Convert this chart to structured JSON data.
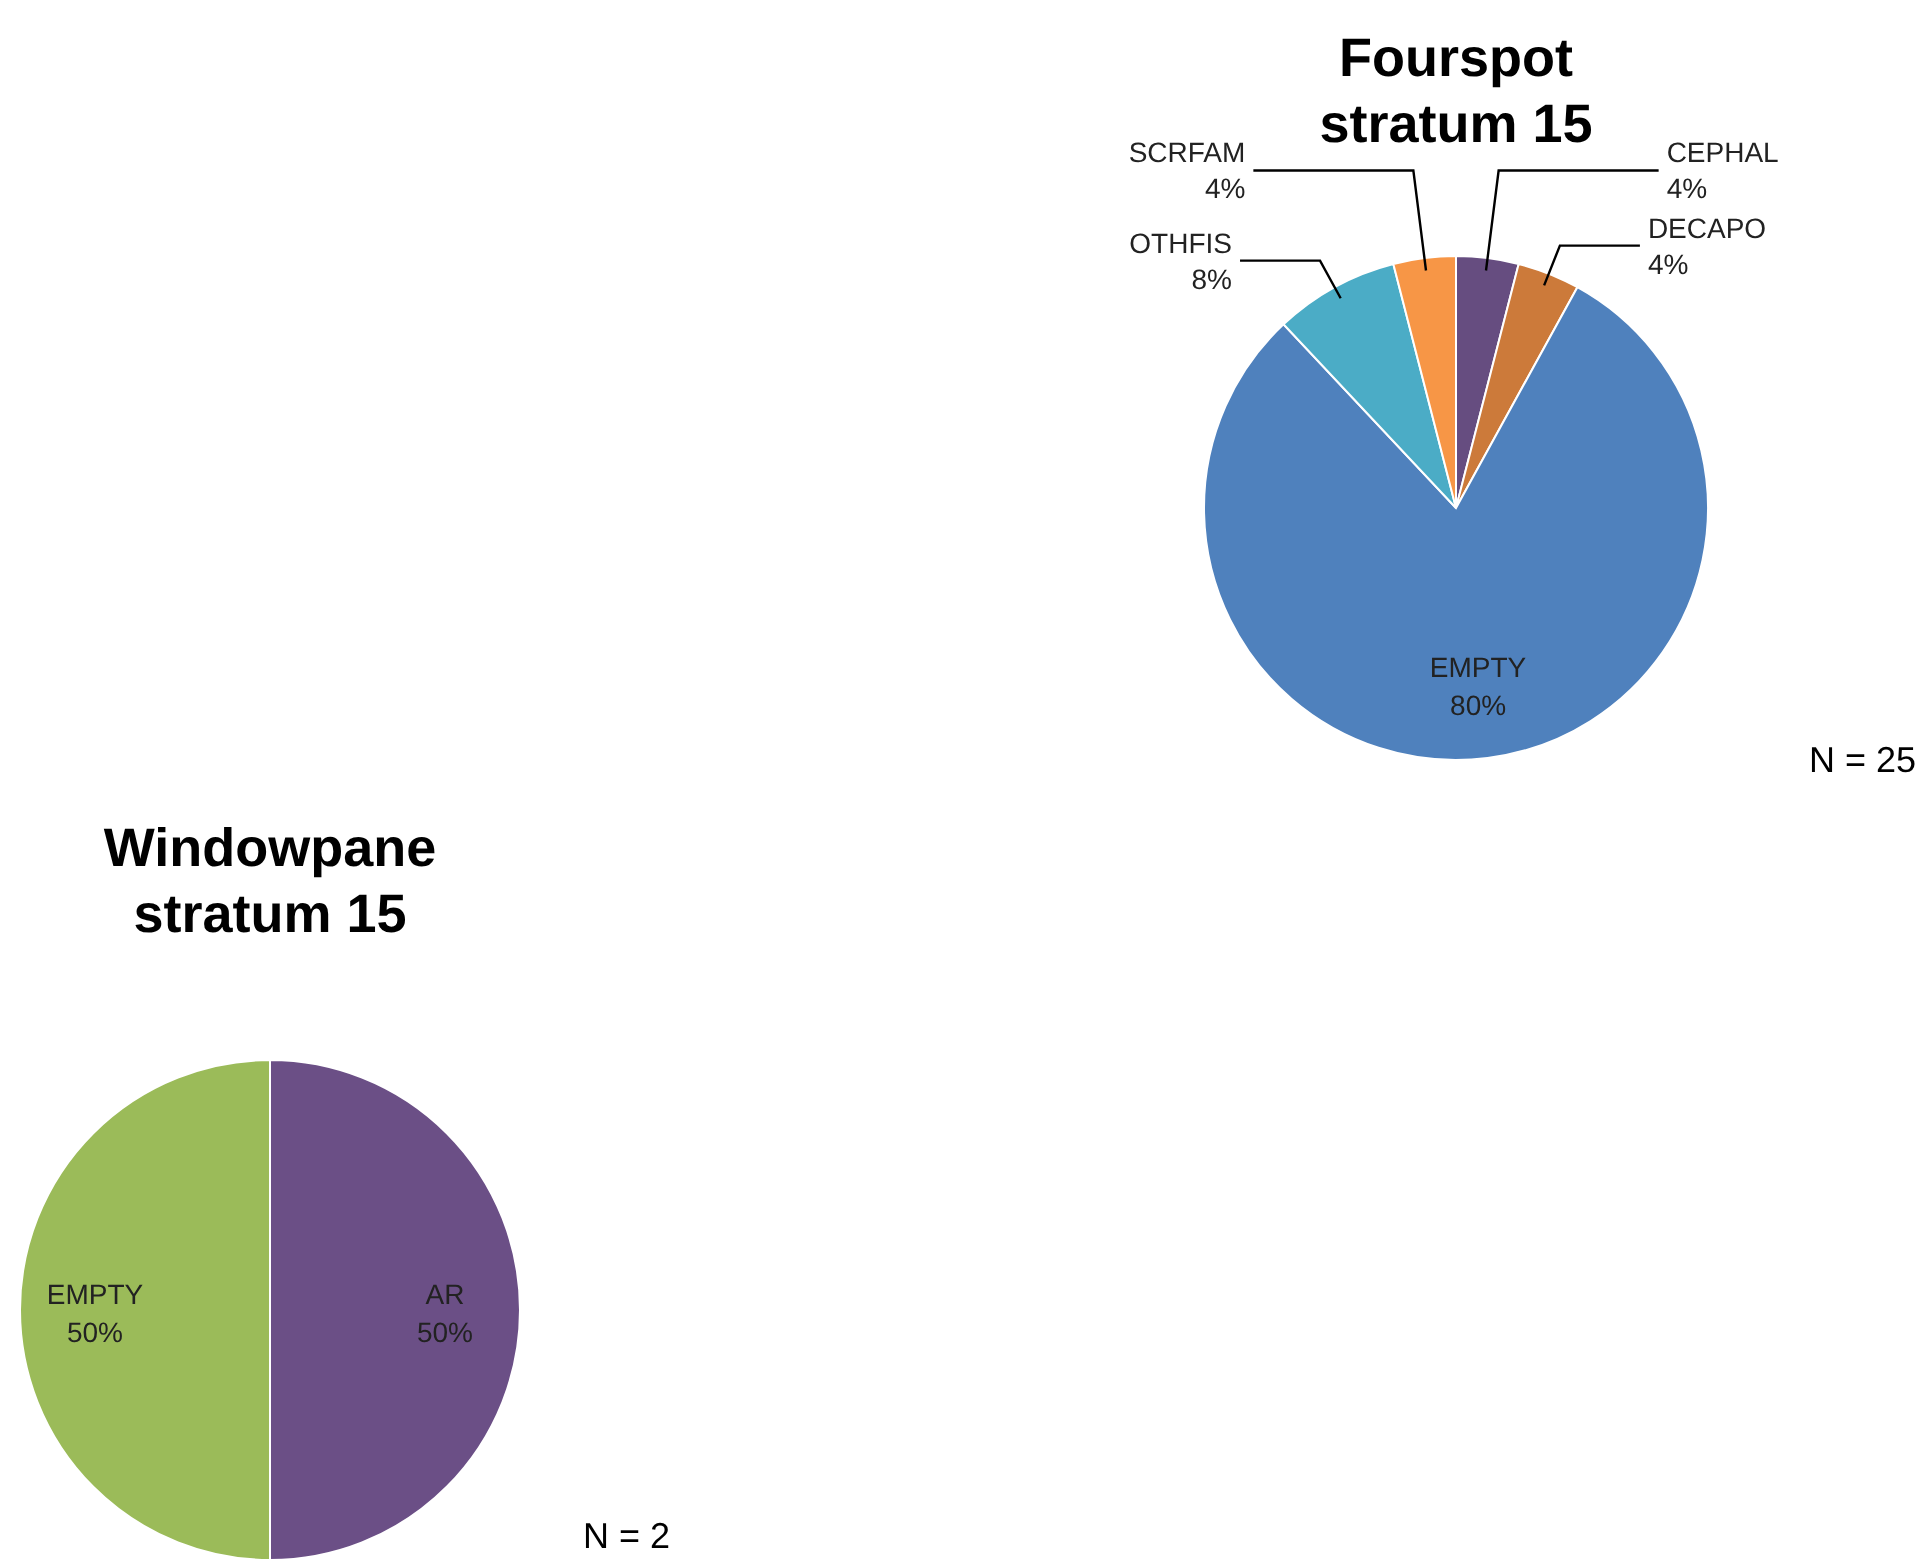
{
  "chart_data": [
    {
      "type": "pie",
      "title": "Fourspot stratum 15",
      "categories": [
        "CEPHAL",
        "DECAPO",
        "EMPTY",
        "OTHFIS",
        "SCRFAM"
      ],
      "values": [
        4,
        4,
        80,
        8,
        4
      ],
      "colors": [
        "#664d80",
        "#cc7a3a",
        "#4f81bd",
        "#4bacc6",
        "#f79646"
      ],
      "value_labels": [
        "4%",
        "4%",
        "80%",
        "8%",
        "4%"
      ],
      "annotations": [
        "N = 25"
      ]
    },
    {
      "type": "pie",
      "title": "Windowpane stratum 15",
      "categories": [
        "AR",
        "EMPTY"
      ],
      "values": [
        50,
        50
      ],
      "colors": [
        "#6b4f86",
        "#9bbb59"
      ],
      "value_labels": [
        "50%",
        "50%"
      ],
      "annotations": [
        "N = 2"
      ]
    }
  ]
}
